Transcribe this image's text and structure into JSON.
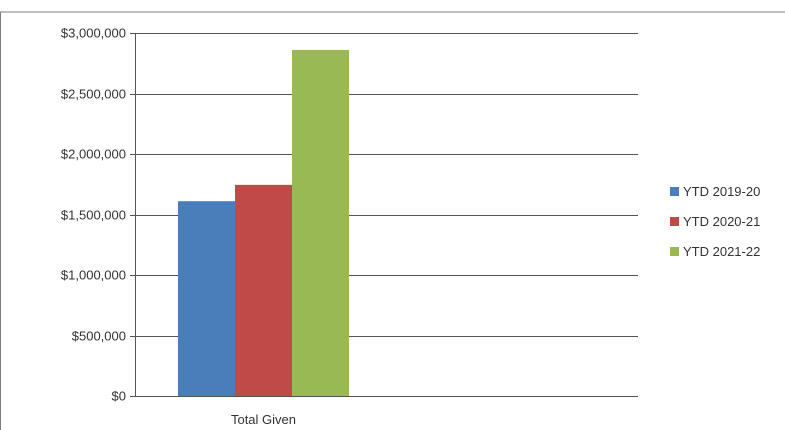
{
  "chart_data": {
    "type": "bar",
    "categories": [
      "Total Given"
    ],
    "series": [
      {
        "name": "YTD 2019-20",
        "values": [
          1610000
        ],
        "color": "#4a7ebb"
      },
      {
        "name": "YTD 2020-21",
        "values": [
          1745000
        ],
        "color": "#be4b48"
      },
      {
        "name": "YTD 2021-22",
        "values": [
          2860000
        ],
        "color": "#98b954"
      }
    ],
    "title": "",
    "xlabel": "",
    "ylabel": "",
    "ylim": [
      0,
      3000000
    ],
    "yticks": [
      0,
      500000,
      1000000,
      1500000,
      2000000,
      2500000,
      3000000
    ],
    "ytick_labels": [
      "$0",
      "$500,000",
      "$1,000,000",
      "$1,500,000",
      "$2,000,000",
      "$2,500,000",
      "$3,000,000"
    ],
    "grid": true,
    "legend_position": "right"
  }
}
